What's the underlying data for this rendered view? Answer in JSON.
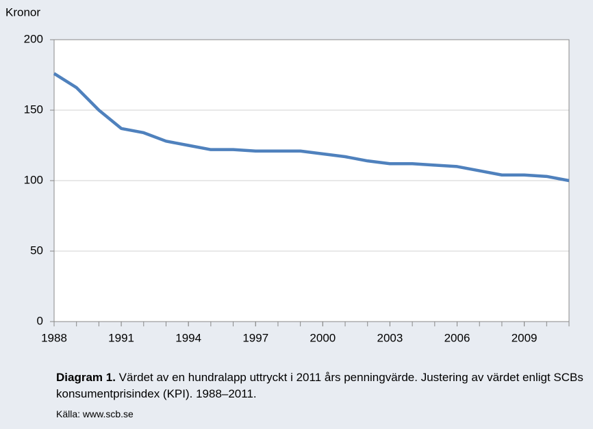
{
  "chart_data": {
    "type": "line",
    "y_label": "Kronor",
    "x": [
      1988,
      1989,
      1990,
      1991,
      1992,
      1993,
      1994,
      1995,
      1996,
      1997,
      1998,
      1999,
      2000,
      2001,
      2002,
      2003,
      2004,
      2005,
      2006,
      2007,
      2008,
      2009,
      2010,
      2011
    ],
    "series": [
      {
        "color": "#4f81bd",
        "values": [
          176,
          166,
          150,
          137,
          134,
          128,
          125,
          122,
          122,
          121,
          121,
          121,
          119,
          117,
          114,
          112,
          112,
          111,
          110,
          107,
          104,
          104,
          103,
          100
        ]
      }
    ],
    "xlim": [
      1988,
      2011
    ],
    "xticks": [
      1988,
      1991,
      1994,
      1997,
      2000,
      2003,
      2006,
      2009
    ],
    "ylim": [
      0,
      200
    ],
    "yticks": [
      0,
      50,
      100,
      150,
      200
    ],
    "grid": true,
    "caption_label": "Diagram 1.",
    "caption": "Värdet av en hundralapp uttryckt i 2011 års penningvärde. Justering av värdet enligt SCBs konsumentprisindex (KPI). 1988–2011.",
    "source": "Källa: www.scb.se"
  }
}
